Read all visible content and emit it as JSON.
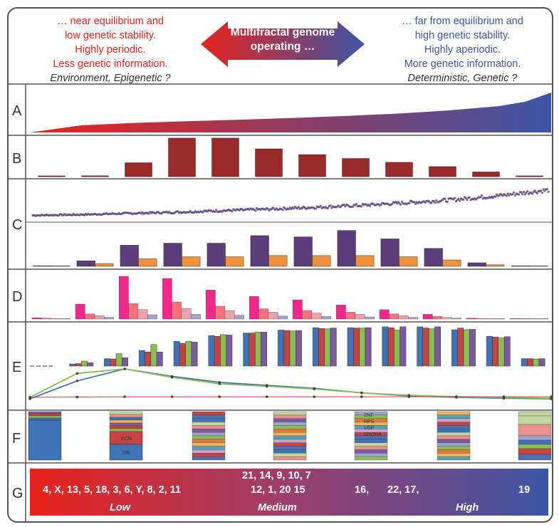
{
  "header": {
    "left_lines": [
      "… near equilibrium and",
      "low genetic stability.",
      "Highly periodic.",
      "Less genetic information."
    ],
    "left_italic": "Environment, Epigenetic ?",
    "right_lines": [
      "… far from equilibrium and",
      "high genetic stability.",
      "Highly aperiodic.",
      "More genetic information."
    ],
    "right_italic": "Deterministic, Genetic ?",
    "arrow_line1": "Multifractal genome",
    "arrow_line2": "operating …"
  },
  "colors": {
    "red": "#e8231b",
    "blue": "#3d55a6",
    "dark_red": "#9b2a2a",
    "purple_dark": "#5a3e7a",
    "orange": "#f0923b",
    "pink": "#f0288a",
    "salmon": "#f3707c",
    "light_pink": "#e8a3ad",
    "lavender": "#a9a3c8",
    "e_blue": "#3f73b8",
    "e_red": "#c94242",
    "e_green": "#8bbd53",
    "e_purple": "#7a5aa0"
  },
  "lanes": [
    "A",
    "B",
    "C",
    "D",
    "E",
    "F",
    "G"
  ],
  "chart_data": [
    {
      "type": "area",
      "panel": "A",
      "x": [
        0,
        0.1,
        0.2,
        0.3,
        0.4,
        0.5,
        0.6,
        0.7,
        0.8,
        0.9,
        0.95,
        1.0
      ],
      "values": [
        0.0,
        0.18,
        0.24,
        0.28,
        0.32,
        0.36,
        0.41,
        0.47,
        0.55,
        0.66,
        0.77,
        1.0
      ]
    },
    {
      "type": "bar",
      "panel": "B",
      "values": [
        0.5,
        2,
        36,
        100,
        100,
        72,
        57,
        47,
        37,
        26,
        12,
        1
      ]
    },
    {
      "type": "scatter",
      "panel": "C-top",
      "trend": [
        0.14,
        0.16,
        0.19,
        0.22,
        0.26,
        0.3,
        0.35,
        0.4,
        0.47,
        0.55,
        0.66,
        0.8
      ]
    },
    {
      "type": "bar",
      "panel": "C-bottom",
      "series": [
        {
          "name": "purple",
          "values": [
            1,
            14,
            53,
            58,
            58,
            77,
            74,
            90,
            69,
            45,
            9,
            1
          ]
        },
        {
          "name": "orange",
          "values": [
            1,
            7,
            19,
            24,
            24,
            27,
            27,
            27,
            24,
            16,
            4,
            1
          ]
        }
      ]
    },
    {
      "type": "bar",
      "panel": "D",
      "series": [
        {
          "name": "pink",
          "values": [
            3,
            35,
            100,
            95,
            68,
            53,
            45,
            33,
            22,
            11,
            2,
            0.5
          ]
        },
        {
          "name": "salmon",
          "values": [
            2,
            12,
            36,
            40,
            30,
            24,
            20,
            16,
            12,
            6,
            1,
            0.5
          ]
        },
        {
          "name": "light_pink",
          "values": [
            1,
            8,
            22,
            25,
            20,
            16,
            14,
            11,
            8,
            4,
            1,
            0.5
          ]
        },
        {
          "name": "lavender",
          "values": [
            1,
            4,
            10,
            11,
            9,
            7,
            6,
            5,
            4,
            2,
            0.5,
            0.5
          ]
        }
      ]
    },
    {
      "type": "bar",
      "panel": "E-bars",
      "series": [
        {
          "name": "blue",
          "values": [
            0,
            5,
            18,
            38,
            60,
            74,
            80,
            87,
            93,
            93,
            95,
            95,
            88,
            72,
            18
          ]
        },
        {
          "name": "red",
          "values": [
            0,
            6,
            17,
            34,
            55,
            72,
            80,
            86,
            91,
            92,
            93,
            92,
            92,
            70,
            18
          ]
        },
        {
          "name": "green",
          "values": [
            0,
            12,
            30,
            52,
            60,
            76,
            82,
            85,
            90,
            92,
            87,
            90,
            88,
            68,
            17
          ]
        },
        {
          "name": "purple",
          "values": [
            0,
            8,
            20,
            34,
            58,
            75,
            82,
            86,
            92,
            93,
            95,
            95,
            89,
            71,
            18
          ]
        }
      ]
    },
    {
      "type": "line",
      "panel": "E-lines",
      "series": [
        {
          "name": "blue",
          "values": [
            0,
            0.6,
            1.0,
            0.75,
            0.55,
            0.45,
            0.35,
            0.2,
            0.1,
            0.05,
            0.02,
            0.0
          ]
        },
        {
          "name": "green",
          "values": [
            0.05,
            0.85,
            1.0,
            0.72,
            0.5,
            0.42,
            0.33,
            0.2,
            0.12,
            0.07,
            0.04,
            0.02
          ]
        },
        {
          "name": "red",
          "values": [
            0.05,
            0.06,
            0.07,
            0.07,
            0.07,
            0.07,
            0.07,
            0.07,
            0.07,
            0.07,
            0.07,
            0.07
          ]
        }
      ]
    }
  ],
  "panel_f": {
    "stacks": [
      {
        "labels": []
      },
      {
        "labels": [
          "KCN",
          "OR"
        ]
      },
      {
        "labels": []
      },
      {
        "labels": []
      },
      {
        "labels": [
          "ZNF",
          "RPS",
          "USP",
          "SNORA"
        ]
      },
      {
        "labels": []
      },
      {
        "labels": []
      }
    ]
  },
  "panel_g": {
    "low_chromosomes": "4, X, 13, 5, 18, 3, 6, Y, 8, 2, 11",
    "medium_line1": "21, 14, 9, 10, 7",
    "medium_line2": "12, 1, 20 15",
    "high_part1": "16,",
    "high_part2": "22, 17,",
    "high_last": "19",
    "low_label": "Low",
    "medium_label": "Medium",
    "high_label": "High"
  }
}
